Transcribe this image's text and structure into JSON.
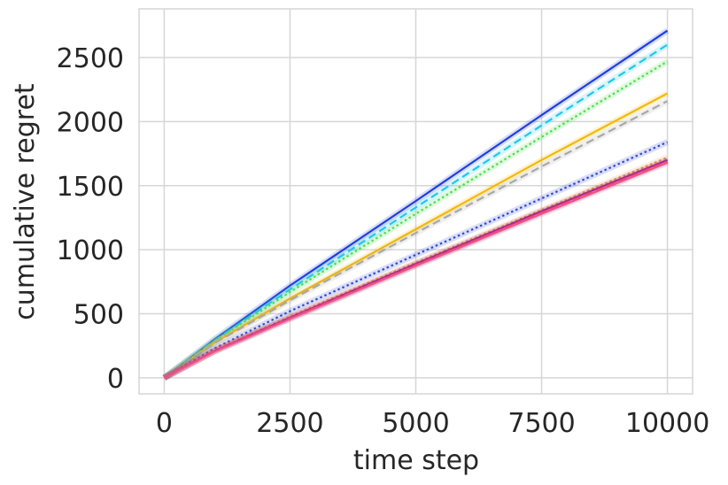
{
  "chart_data": {
    "type": "line",
    "x_label": "time step",
    "y_label": "cumulative regret",
    "x": [
      0,
      1000,
      2500,
      5000,
      7500,
      10000
    ],
    "xlim": [
      -500,
      10500
    ],
    "xticks": [
      0,
      2500,
      5000,
      7500,
      10000
    ],
    "ylim": [
      -125,
      2880
    ],
    "yticks": [
      0,
      500,
      1000,
      1500,
      2000,
      2500
    ],
    "grid": true,
    "series": [
      {
        "color": "#1f3fe0",
        "style": "solid",
        "values": [
          0,
          300,
          720,
          1380,
          2050,
          2710
        ]
      },
      {
        "color": "#1ec8f0",
        "style": "dashed",
        "values": [
          0,
          290,
          690,
          1330,
          1970,
          2600
        ]
      },
      {
        "color": "#4fdc4f",
        "style": "dotted",
        "values": [
          0,
          285,
          670,
          1280,
          1880,
          2470
        ]
      },
      {
        "color": "#f5b800",
        "style": "solid",
        "values": [
          0,
          275,
          620,
          1160,
          1700,
          2220
        ]
      },
      {
        "color": "#a8a8a8",
        "style": "dashed",
        "values": [
          0,
          270,
          605,
          1130,
          1650,
          2160
        ]
      },
      {
        "color": "#3048d8",
        "style": "dotted",
        "values": [
          0,
          230,
          520,
          960,
          1400,
          1840
        ]
      },
      {
        "color": "#f09a30",
        "style": "dotted",
        "values": [
          0,
          215,
          480,
          900,
          1310,
          1720
        ]
      },
      {
        "color": "#8a1a9a",
        "style": "solid",
        "values": [
          0,
          210,
          470,
          890,
          1300,
          1700
        ]
      },
      {
        "color": "#e04060",
        "style": "dashed",
        "values": [
          0,
          210,
          465,
          880,
          1290,
          1690
        ]
      },
      {
        "color": "#f0508a",
        "style": "solid",
        "values": [
          0,
          205,
          460,
          875,
          1280,
          1680
        ]
      }
    ]
  }
}
